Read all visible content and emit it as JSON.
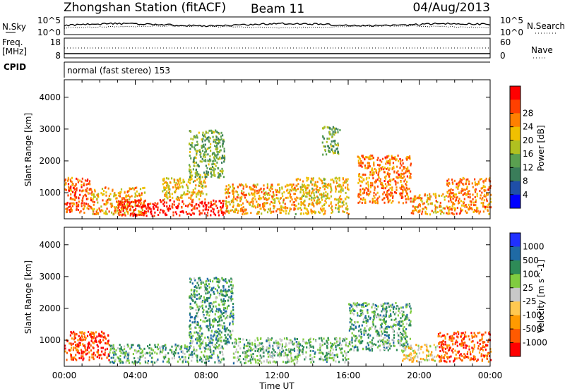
{
  "header": {
    "title": "Zhongshan Station (fitACF)",
    "beam": "Beam 11",
    "date": "04/Aug/2013"
  },
  "noise_panel": {
    "left_label": "N.Sky",
    "right_label": "N.Search",
    "left_ticks": [
      "10^5",
      "10^0"
    ],
    "right_ticks": [
      "10^5",
      "10^0"
    ]
  },
  "freq_panel": {
    "left_label_line1": "Freq.",
    "left_label_line2": "[MHz]",
    "left_ticks": [
      "18",
      "8"
    ],
    "right_label": "Nave",
    "right_ticks": [
      "60",
      "0"
    ]
  },
  "cpid_panel": {
    "label": "CPID",
    "text": "normal (fast stereo) 153"
  },
  "time_axis": {
    "title": "Time UT",
    "ticks": [
      "00:00",
      "04:00",
      "08:00",
      "12:00",
      "16:00",
      "20:00",
      "00:00"
    ]
  },
  "colors": {
    "power": [
      "#0000ff",
      "#1f4fa8",
      "#3a7d5a",
      "#5aa050",
      "#b0c020",
      "#f0c000",
      "#ff8000",
      "#ff4000",
      "#ff0000"
    ],
    "velocity": [
      "#ff0000",
      "#ff5a00",
      "#ff9a00",
      "#ffc850",
      "#c8c8c8",
      "#80cc40",
      "#2e8b57",
      "#1f6aa5",
      "#2030ff"
    ]
  },
  "chart_data": [
    {
      "type": "heatmap",
      "panel": "power",
      "ylabel": "Slant Range [km]",
      "xlabel": "",
      "yticks": [
        1000,
        2000,
        3000,
        4000
      ],
      "ylim": [
        180,
        4550
      ],
      "xlim": [
        0,
        24
      ],
      "colorbar": {
        "label": "Power [dB]",
        "ticks": [
          "4",
          "8",
          "12",
          "16",
          "20",
          "24",
          "28"
        ],
        "range": [
          0,
          30
        ]
      },
      "regions": [
        {
          "t0": 0.0,
          "t1": 1.5,
          "r0": 400,
          "r1": 1500,
          "value": 24
        },
        {
          "t0": 1.5,
          "t1": 4.5,
          "r0": 350,
          "r1": 1200,
          "value": 20
        },
        {
          "t0": 3.0,
          "t1": 9.0,
          "r0": 300,
          "r1": 800,
          "value": 28
        },
        {
          "t0": 5.5,
          "t1": 8.0,
          "r0": 800,
          "r1": 1500,
          "value": 18
        },
        {
          "t0": 7.0,
          "t1": 9.0,
          "r0": 1500,
          "r1": 3000,
          "value": 12
        },
        {
          "t0": 9.0,
          "t1": 13.0,
          "r0": 350,
          "r1": 1300,
          "value": 20
        },
        {
          "t0": 13.0,
          "t1": 16.0,
          "r0": 350,
          "r1": 1500,
          "value": 18
        },
        {
          "t0": 14.5,
          "t1": 15.5,
          "r0": 2200,
          "r1": 3100,
          "value": 12
        },
        {
          "t0": 16.5,
          "t1": 19.5,
          "r0": 700,
          "r1": 2200,
          "value": 22
        },
        {
          "t0": 19.5,
          "t1": 21.5,
          "r0": 350,
          "r1": 1000,
          "value": 20
        },
        {
          "t0": 21.5,
          "t1": 24.0,
          "r0": 350,
          "r1": 1500,
          "value": 22
        }
      ]
    },
    {
      "type": "heatmap",
      "panel": "velocity",
      "ylabel": "Slant Range [km]",
      "xlabel": "Time UT",
      "yticks": [
        1000,
        2000,
        3000,
        4000
      ],
      "ylim": [
        180,
        4550
      ],
      "xlim": [
        0,
        24
      ],
      "colorbar": {
        "label": "Velocity [m s^-1]",
        "ticks": [
          "1000",
          "500",
          "100",
          "25",
          "-25",
          "-100",
          "-500",
          "-1000"
        ],
        "range": [
          -1000,
          1000
        ]
      },
      "regions": [
        {
          "t0": 0.0,
          "t1": 2.5,
          "r0": 400,
          "r1": 1300,
          "value": 800
        },
        {
          "t0": 2.5,
          "t1": 9.0,
          "r0": 300,
          "r1": 900,
          "value": -300
        },
        {
          "t0": 7.0,
          "t1": 9.5,
          "r0": 900,
          "r1": 3000,
          "value": -400
        },
        {
          "t0": 9.5,
          "t1": 16.0,
          "r0": 300,
          "r1": 1100,
          "value": -250
        },
        {
          "t0": 16.0,
          "t1": 19.5,
          "r0": 700,
          "r1": 2200,
          "value": -350
        },
        {
          "t0": 19.0,
          "t1": 21.0,
          "r0": 350,
          "r1": 900,
          "value": 150
        },
        {
          "t0": 21.0,
          "t1": 24.0,
          "r0": 350,
          "r1": 1300,
          "value": 700
        }
      ]
    }
  ]
}
